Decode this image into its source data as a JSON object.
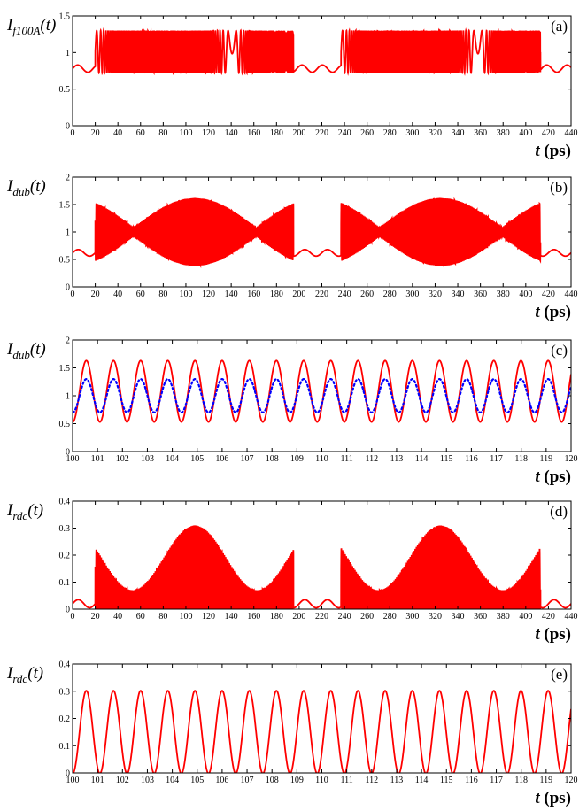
{
  "chart_data": [
    {
      "type": "line",
      "panel_label": "(a)",
      "ylabel_main": "I",
      "ylabel_sub": "f100A",
      "ylabel_arg": "(t)",
      "xlabel_var": "t",
      "xlabel_unit": "(ps)",
      "xlim": [
        0,
        440
      ],
      "ylim": [
        0,
        1.5
      ],
      "x_ticks": [
        0,
        20,
        40,
        60,
        80,
        100,
        120,
        140,
        160,
        180,
        200,
        220,
        240,
        260,
        280,
        300,
        320,
        340,
        360,
        380,
        400,
        420,
        440
      ],
      "y_ticks": [
        0,
        0.5,
        1,
        1.5
      ],
      "y_tick_labels": [
        "0",
        "0.5",
        "1",
        "1.5"
      ],
      "series": [
        {
          "color": "#ff0000",
          "style": "solid",
          "description_points": {
            "baseline": 0.78,
            "max": 1.3,
            "min": 0.72,
            "dense_oscillation_ranges": [
              [
                20,
                195
              ],
              [
                237,
                413
              ]
            ],
            "quiet_ranges": [
              [
                0,
                20
              ],
              [
                195,
                237
              ],
              [
                413,
                440
              ]
            ]
          }
        }
      ]
    },
    {
      "type": "line",
      "panel_label": "(b)",
      "ylabel_main": "I",
      "ylabel_sub": "dub",
      "ylabel_arg": "(t)",
      "xlabel_var": "t",
      "xlabel_unit": "(ps)",
      "xlim": [
        0,
        440
      ],
      "ylim": [
        0,
        2
      ],
      "x_ticks": [
        0,
        20,
        40,
        60,
        80,
        100,
        120,
        140,
        160,
        180,
        200,
        220,
        240,
        260,
        280,
        300,
        320,
        340,
        360,
        380,
        400,
        420,
        440
      ],
      "y_ticks": [
        0,
        0.5,
        1,
        1.5,
        2
      ],
      "y_tick_labels": [
        "0",
        "0.5",
        "1",
        "1.5",
        "2"
      ],
      "series": [
        {
          "color": "#ff0000",
          "style": "solid",
          "envelope": {
            "center": 1.0,
            "peak_amplitude": 0.62,
            "peak_centers": [
              108,
              325
            ],
            "node_points": [
              55,
              162,
              271,
              379
            ]
          }
        }
      ]
    },
    {
      "type": "line",
      "panel_label": "(c)",
      "ylabel_main": "I",
      "ylabel_sub": "dub",
      "ylabel_arg": "(t)",
      "xlabel_var": "t",
      "xlabel_unit": "(ps)",
      "xlim": [
        100,
        120
      ],
      "ylim": [
        0,
        2
      ],
      "x_ticks": [
        100,
        101,
        102,
        103,
        104,
        105,
        106,
        107,
        108,
        109,
        110,
        111,
        112,
        113,
        114,
        115,
        116,
        117,
        118,
        119,
        120
      ],
      "y_ticks": [
        0,
        0.5,
        1,
        1.5,
        2
      ],
      "y_tick_labels": [
        "0",
        "0.5",
        "1",
        "1.5",
        "2"
      ],
      "series": [
        {
          "color": "#ff0000",
          "style": "solid",
          "center": 1.08,
          "amplitude": 0.55,
          "period": 1.09,
          "first_peak_x": 100.55
        },
        {
          "color": "#0000ff",
          "style": "dotted",
          "center": 1.0,
          "amplitude": 0.3,
          "period": 1.09,
          "first_peak_x": 100.55
        }
      ]
    },
    {
      "type": "line",
      "panel_label": "(d)",
      "ylabel_main": "I",
      "ylabel_sub": "rdc",
      "ylabel_arg": "(t)",
      "xlabel_var": "t",
      "xlabel_unit": "(ps)",
      "xlim": [
        0,
        440
      ],
      "ylim": [
        0,
        0.4
      ],
      "x_ticks": [
        0,
        20,
        40,
        60,
        80,
        100,
        120,
        140,
        160,
        180,
        200,
        220,
        240,
        260,
        280,
        300,
        320,
        340,
        360,
        380,
        400,
        420,
        440
      ],
      "y_ticks": [
        0,
        0.1,
        0.2,
        0.3,
        0.4
      ],
      "y_tick_labels": [
        "0",
        "0.1",
        "0.2",
        "0.3",
        "0.4"
      ],
      "series": [
        {
          "color": "#ff0000",
          "style": "solid",
          "envelope": {
            "floor": 0.0,
            "peak_max": 0.31,
            "peak_centers": [
              108,
              325
            ],
            "node_level": 0.07
          }
        }
      ]
    },
    {
      "type": "line",
      "panel_label": "(e)",
      "ylabel_main": "I",
      "ylabel_sub": "rdc",
      "ylabel_arg": "(t)",
      "xlabel_var": "t",
      "xlabel_unit": "(ps)",
      "xlim": [
        100,
        120
      ],
      "ylim": [
        0,
        0.4
      ],
      "x_ticks": [
        100,
        101,
        102,
        103,
        104,
        105,
        106,
        107,
        108,
        109,
        110,
        111,
        112,
        113,
        114,
        115,
        116,
        117,
        118,
        119,
        120
      ],
      "y_ticks": [
        0,
        0.1,
        0.2,
        0.3,
        0.4
      ],
      "y_tick_labels": [
        "0",
        "0.1",
        "0.2",
        "0.3",
        "0.4"
      ],
      "series": [
        {
          "color": "#ff0000",
          "style": "solid",
          "center": 0.15,
          "amplitude": 0.152,
          "period": 1.09,
          "first_peak_x": 100.55
        }
      ]
    }
  ]
}
